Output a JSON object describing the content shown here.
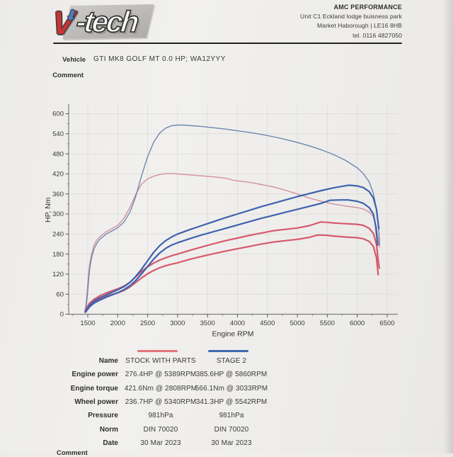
{
  "header": {
    "logo_v": "V",
    "logo_tech": "-tech",
    "company": "AMC PERFORMANCE",
    "address_line1": "Unit C1   Eckland lodge buisness park",
    "address_line2": "Market Haborough | LE16 8HB",
    "address_line3": "tel. 0116 4827050"
  },
  "info": {
    "vehicle_label": "Vehicle",
    "vehicle_value": "GTI MK8 GOLF MT 0.0 HP; WA12YYY",
    "comment_label": "Comment",
    "comment_value": ""
  },
  "chart_data": {
    "type": "line",
    "title": "",
    "xlabel": "Engine RPM",
    "ylabel": "HP, Nm",
    "xlim": [
      1500,
      6500
    ],
    "ylim": [
      0,
      600
    ],
    "x_ticks": [
      1500,
      2000,
      2500,
      3000,
      3500,
      4000,
      4500,
      5000,
      5500,
      6000,
      6500
    ],
    "y_ticks": [
      0,
      60,
      120,
      180,
      240,
      300,
      360,
      420,
      480,
      540,
      600
    ],
    "grid": true,
    "grid_color": "#dcdbd8",
    "axis_color": "#7d7d7d",
    "legend_position": "below",
    "series": [
      {
        "name": "STOCK WITH PARTS - engine torque (Nm)",
        "color": "#d4909c",
        "width": 1.4,
        "points": [
          [
            1455,
            12
          ],
          [
            1470,
            30
          ],
          [
            1490,
            70
          ],
          [
            1510,
            115
          ],
          [
            1530,
            148
          ],
          [
            1560,
            178
          ],
          [
            1600,
            205
          ],
          [
            1650,
            222
          ],
          [
            1700,
            232
          ],
          [
            1800,
            246
          ],
          [
            1900,
            256
          ],
          [
            2000,
            266
          ],
          [
            2100,
            286
          ],
          [
            2200,
            318
          ],
          [
            2300,
            358
          ],
          [
            2400,
            390
          ],
          [
            2500,
            405
          ],
          [
            2600,
            413
          ],
          [
            2700,
            418
          ],
          [
            2810,
            421
          ],
          [
            2900,
            421
          ],
          [
            3000,
            420
          ],
          [
            3200,
            417
          ],
          [
            3400,
            414
          ],
          [
            3600,
            411
          ],
          [
            3800,
            407
          ],
          [
            3950,
            400
          ],
          [
            4100,
            397
          ],
          [
            4250,
            393
          ],
          [
            4400,
            388
          ],
          [
            4600,
            381
          ],
          [
            4800,
            371
          ],
          [
            5000,
            360
          ],
          [
            5200,
            348
          ],
          [
            5400,
            338
          ],
          [
            5600,
            330
          ],
          [
            5800,
            324
          ],
          [
            6000,
            319
          ],
          [
            6100,
            315
          ],
          [
            6200,
            306
          ],
          [
            6270,
            292
          ],
          [
            6320,
            262
          ],
          [
            6350,
            225
          ],
          [
            6370,
            200
          ]
        ]
      },
      {
        "name": "STAGE 2 - engine torque (Nm)",
        "color": "#6f87b0",
        "width": 1.4,
        "points": [
          [
            1460,
            10
          ],
          [
            1475,
            25
          ],
          [
            1495,
            60
          ],
          [
            1515,
            105
          ],
          [
            1535,
            140
          ],
          [
            1565,
            170
          ],
          [
            1610,
            198
          ],
          [
            1660,
            215
          ],
          [
            1710,
            226
          ],
          [
            1810,
            240
          ],
          [
            1910,
            250
          ],
          [
            2010,
            260
          ],
          [
            2110,
            277
          ],
          [
            2210,
            308
          ],
          [
            2300,
            352
          ],
          [
            2400,
            415
          ],
          [
            2500,
            472
          ],
          [
            2600,
            515
          ],
          [
            2700,
            542
          ],
          [
            2800,
            557
          ],
          [
            2900,
            564
          ],
          [
            3000,
            566
          ],
          [
            3100,
            566
          ],
          [
            3250,
            564
          ],
          [
            3400,
            562
          ],
          [
            3600,
            558
          ],
          [
            3800,
            554
          ],
          [
            4000,
            549
          ],
          [
            4200,
            544
          ],
          [
            4400,
            538
          ],
          [
            4600,
            531
          ],
          [
            4800,
            523
          ],
          [
            5000,
            514
          ],
          [
            5200,
            504
          ],
          [
            5400,
            492
          ],
          [
            5600,
            478
          ],
          [
            5800,
            461
          ],
          [
            6000,
            438
          ],
          [
            6100,
            421
          ],
          [
            6200,
            396
          ],
          [
            6270,
            362
          ],
          [
            6320,
            315
          ],
          [
            6360,
            250
          ],
          [
            6375,
            208
          ]
        ]
      },
      {
        "name": "STOCK WITH PARTS - engine power (HP)",
        "color": "#d6596c",
        "width": 2.2,
        "points": [
          [
            1455,
            10
          ],
          [
            1490,
            22
          ],
          [
            1530,
            33
          ],
          [
            1600,
            44
          ],
          [
            1700,
            55
          ],
          [
            1800,
            63
          ],
          [
            1900,
            70
          ],
          [
            2000,
            76
          ],
          [
            2100,
            84
          ],
          [
            2200,
            95
          ],
          [
            2300,
            112
          ],
          [
            2400,
            128
          ],
          [
            2500,
            142
          ],
          [
            2600,
            153
          ],
          [
            2700,
            162
          ],
          [
            2800,
            169
          ],
          [
            2900,
            175
          ],
          [
            3000,
            180
          ],
          [
            3200,
            191
          ],
          [
            3400,
            201
          ],
          [
            3600,
            211
          ],
          [
            3800,
            220
          ],
          [
            4000,
            228
          ],
          [
            4200,
            236
          ],
          [
            4400,
            243
          ],
          [
            4600,
            250
          ],
          [
            4800,
            254
          ],
          [
            5000,
            258
          ],
          [
            5200,
            265
          ],
          [
            5389,
            276
          ],
          [
            5500,
            275
          ],
          [
            5600,
            273
          ],
          [
            5800,
            271
          ],
          [
            6000,
            269
          ],
          [
            6100,
            266
          ],
          [
            6200,
            257
          ],
          [
            6270,
            242
          ],
          [
            6320,
            210
          ],
          [
            6355,
            155
          ],
          [
            6370,
            138
          ]
        ]
      },
      {
        "name": "STOCK WITH PARTS - wheel power (HP)",
        "color": "#d6596c",
        "width": 2.2,
        "points": [
          [
            1455,
            7
          ],
          [
            1490,
            17
          ],
          [
            1530,
            26
          ],
          [
            1600,
            36
          ],
          [
            1700,
            46
          ],
          [
            1800,
            53
          ],
          [
            1900,
            59
          ],
          [
            2000,
            64
          ],
          [
            2100,
            71
          ],
          [
            2200,
            81
          ],
          [
            2300,
            95
          ],
          [
            2400,
            109
          ],
          [
            2500,
            121
          ],
          [
            2600,
            131
          ],
          [
            2700,
            139
          ],
          [
            2800,
            145
          ],
          [
            2900,
            150
          ],
          [
            3000,
            154
          ],
          [
            3200,
            164
          ],
          [
            3400,
            173
          ],
          [
            3600,
            181
          ],
          [
            3800,
            189
          ],
          [
            4000,
            196
          ],
          [
            4200,
            203
          ],
          [
            4400,
            210
          ],
          [
            4600,
            216
          ],
          [
            4800,
            220
          ],
          [
            5000,
            224
          ],
          [
            5200,
            230
          ],
          [
            5340,
            237
          ],
          [
            5500,
            236
          ],
          [
            5600,
            234
          ],
          [
            5800,
            231
          ],
          [
            6000,
            229
          ],
          [
            6100,
            226
          ],
          [
            6200,
            218
          ],
          [
            6270,
            203
          ],
          [
            6320,
            170
          ],
          [
            6350,
            118
          ]
        ]
      },
      {
        "name": "STAGE 2 - engine power (HP)",
        "color": "#3e62ae",
        "width": 2.2,
        "points": [
          [
            1460,
            8
          ],
          [
            1495,
            18
          ],
          [
            1535,
            28
          ],
          [
            1610,
            40
          ],
          [
            1710,
            50
          ],
          [
            1810,
            58
          ],
          [
            1910,
            66
          ],
          [
            2010,
            74
          ],
          [
            2110,
            83
          ],
          [
            2210,
            96
          ],
          [
            2300,
            113
          ],
          [
            2400,
            135
          ],
          [
            2500,
            160
          ],
          [
            2600,
            185
          ],
          [
            2700,
            205
          ],
          [
            2800,
            220
          ],
          [
            2900,
            231
          ],
          [
            3000,
            240
          ],
          [
            3200,
            253
          ],
          [
            3400,
            265
          ],
          [
            3600,
            277
          ],
          [
            3800,
            289
          ],
          [
            4000,
            300
          ],
          [
            4200,
            311
          ],
          [
            4400,
            322
          ],
          [
            4600,
            332
          ],
          [
            4800,
            342
          ],
          [
            5000,
            352
          ],
          [
            5200,
            361
          ],
          [
            5400,
            370
          ],
          [
            5600,
            378
          ],
          [
            5750,
            383
          ],
          [
            5860,
            386
          ],
          [
            6000,
            384
          ],
          [
            6100,
            379
          ],
          [
            6200,
            367
          ],
          [
            6270,
            348
          ],
          [
            6320,
            315
          ],
          [
            6360,
            256
          ]
        ]
      },
      {
        "name": "STAGE 2 - wheel power (HP)",
        "color": "#3e62ae",
        "width": 2.2,
        "points": [
          [
            1460,
            6
          ],
          [
            1495,
            14
          ],
          [
            1535,
            23
          ],
          [
            1610,
            34
          ],
          [
            1710,
            43
          ],
          [
            1810,
            51
          ],
          [
            1910,
            58
          ],
          [
            2010,
            65
          ],
          [
            2110,
            74
          ],
          [
            2210,
            86
          ],
          [
            2300,
            101
          ],
          [
            2400,
            121
          ],
          [
            2500,
            143
          ],
          [
            2600,
            165
          ],
          [
            2700,
            183
          ],
          [
            2800,
            197
          ],
          [
            2900,
            207
          ],
          [
            3000,
            214
          ],
          [
            3200,
            226
          ],
          [
            3400,
            237
          ],
          [
            3600,
            247
          ],
          [
            3800,
            257
          ],
          [
            4000,
            267
          ],
          [
            4200,
            277
          ],
          [
            4400,
            287
          ],
          [
            4600,
            296
          ],
          [
            4800,
            305
          ],
          [
            5000,
            314
          ],
          [
            5200,
            323
          ],
          [
            5400,
            332
          ],
          [
            5542,
            341
          ],
          [
            5700,
            342
          ],
          [
            5850,
            342
          ],
          [
            6000,
            338
          ],
          [
            6100,
            332
          ],
          [
            6200,
            319
          ],
          [
            6270,
            300
          ],
          [
            6310,
            262
          ],
          [
            6340,
            207
          ]
        ]
      }
    ]
  },
  "results": {
    "legend": {
      "stock_color": "#e4737c",
      "stage2_color": "#3e68b0"
    },
    "rows": [
      {
        "label": "Name",
        "col1": "STOCK WITH PARTS",
        "col2": "STAGE 2"
      },
      {
        "label": "Engine power",
        "col1": "276.4HP @ 5389RPM",
        "col2": "385.6HP @ 5860RPM"
      },
      {
        "label": "Engine torque",
        "col1": "421.6Nm @ 2808RPM",
        "col2": "566.1Nm @ 3033RPM"
      },
      {
        "label": "Wheel power",
        "col1": "236.7HP @ 5340RPM",
        "col2": "341.3HP @ 5542RPM"
      },
      {
        "label": "Pressure",
        "col1": "981hPa",
        "col2": "981hPa"
      },
      {
        "label": "Norm",
        "col1": "DIN 70020",
        "col2": "DIN 70020"
      },
      {
        "label": "Date",
        "col1": "30 Mar 2023",
        "col2": "30 Mar 2023"
      }
    ]
  },
  "footer": {
    "comment_label": "Comment"
  }
}
